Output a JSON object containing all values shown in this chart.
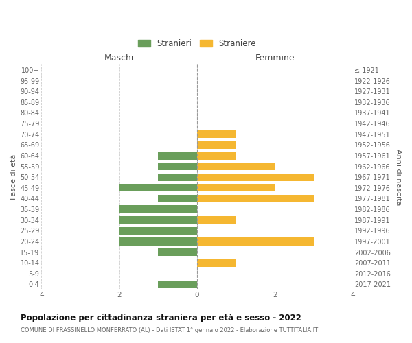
{
  "age_groups": [
    "0-4",
    "5-9",
    "10-14",
    "15-19",
    "20-24",
    "25-29",
    "30-34",
    "35-39",
    "40-44",
    "45-49",
    "50-54",
    "55-59",
    "60-64",
    "65-69",
    "70-74",
    "75-79",
    "80-84",
    "85-89",
    "90-94",
    "95-99",
    "100+"
  ],
  "birth_years": [
    "2017-2021",
    "2012-2016",
    "2007-2011",
    "2002-2006",
    "1997-2001",
    "1992-1996",
    "1987-1991",
    "1982-1986",
    "1977-1981",
    "1972-1976",
    "1967-1971",
    "1962-1966",
    "1957-1961",
    "1952-1956",
    "1947-1951",
    "1942-1946",
    "1937-1941",
    "1932-1936",
    "1927-1931",
    "1922-1926",
    "≤ 1921"
  ],
  "maschi": [
    1,
    0,
    0,
    1,
    2,
    2,
    2,
    2,
    1,
    2,
    1,
    1,
    1,
    0,
    0,
    0,
    0,
    0,
    0,
    0,
    0
  ],
  "femmine": [
    0,
    0,
    1,
    0,
    3,
    0,
    1,
    0,
    3,
    2,
    3,
    2,
    1,
    1,
    1,
    0,
    0,
    0,
    0,
    0,
    0
  ],
  "maschi_color": "#6a9e5b",
  "femmine_color": "#f5b731",
  "xlabel_left": "Maschi",
  "xlabel_right": "Femmine",
  "ylabel_left": "Fasce di età",
  "ylabel_right": "Anni di nascita",
  "legend_maschi": "Stranieri",
  "legend_femmine": "Straniere",
  "title": "Popolazione per cittadinanza straniera per età e sesso - 2022",
  "subtitle": "COMUNE DI FRASSINELLO MONFERRATO (AL) - Dati ISTAT 1° gennaio 2022 - Elaborazione TUTTITALIA.IT",
  "xlim": 4,
  "background_color": "#ffffff",
  "grid_color": "#cccccc",
  "center_line_color": "#999999"
}
